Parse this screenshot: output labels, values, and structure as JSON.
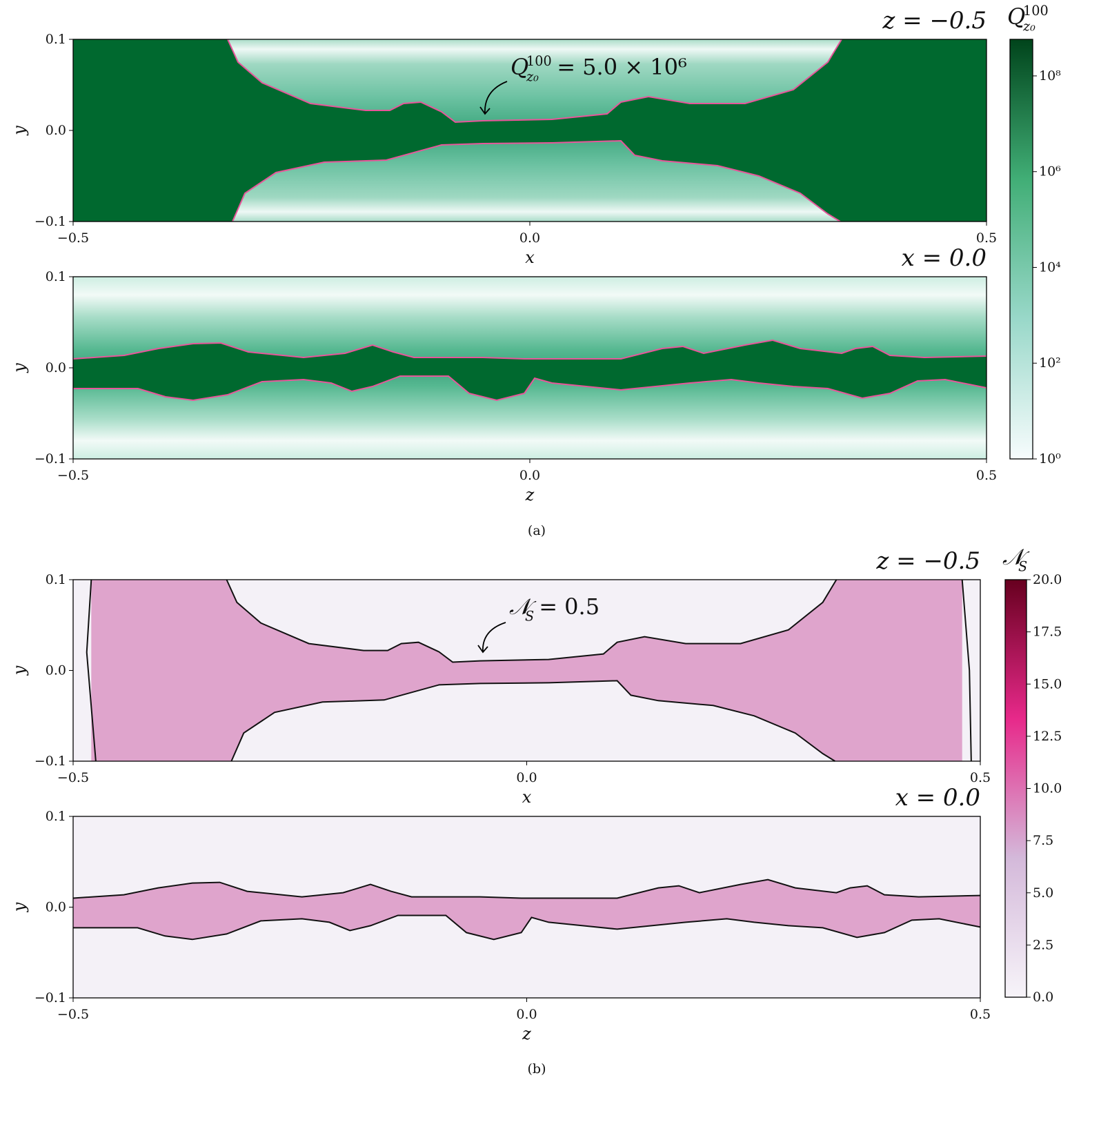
{
  "chart_data": [
    {
      "type": "heatmap",
      "title": "z = −0.5",
      "xlabel": "x",
      "ylabel": "y",
      "xlim": [
        -0.5,
        0.5
      ],
      "ylim": [
        -0.1,
        0.1
      ],
      "xticks": [
        {
          "value": -0.5,
          "label": "−0.5"
        },
        {
          "value": 0,
          "label": "0.0"
        },
        0.5
      ],
      "yticks": [
        {
          "value": -0.1,
          "label": "−0.1"
        },
        {
          "value": 0,
          "label": "0.0"
        },
        0.1
      ],
      "annotation": {
        "symbol": "Q",
        "sup": "100",
        "sub": "z₀",
        "text": "= 5.0 × 10⁶"
      },
      "colorbar": {
        "label": {
          "symbol": "Q",
          "sup": "100",
          "sub": "z₀"
        },
        "scale": "log",
        "lim": [
          1,
          580000000
        ],
        "ticks": [
          {
            "value": 1,
            "label": "10⁰"
          },
          {
            "value": 100,
            "label": "10²"
          },
          {
            "value": 10000,
            "label": "10⁴"
          },
          {
            "value": 1000000,
            "label": "10⁶"
          },
          {
            "value": 100000000,
            "label": "10⁸"
          }
        ],
        "colors": [
          "#f7fcfd",
          "#99d8c9",
          "#41ae76",
          "#00441b"
        ]
      }
    },
    {
      "type": "heatmap",
      "title": "x = 0.0",
      "xlabel": "z",
      "ylabel": "y",
      "xlim": [
        -0.5,
        0.5
      ],
      "ylim": [
        -0.1,
        0.1
      ],
      "xticks": [
        {
          "value": -0.5,
          "label": "−0.5"
        },
        {
          "value": 0,
          "label": "0.0"
        },
        0.5
      ],
      "yticks": [
        {
          "value": -0.1,
          "label": "−0.1"
        },
        {
          "value": 0,
          "label": "0.0"
        },
        0.1
      ],
      "caption": "(a)"
    },
    {
      "type": "heatmap",
      "title": "z = −0.5",
      "xlabel": "x",
      "ylabel": "y",
      "xlim": [
        -0.5,
        0.5
      ],
      "ylim": [
        -0.1,
        0.1
      ],
      "xticks": [
        {
          "value": -0.5,
          "label": "−0.5"
        },
        {
          "value": 0,
          "label": "0.0"
        },
        0.5
      ],
      "yticks": [
        {
          "value": -0.1,
          "label": "−0.1"
        },
        {
          "value": 0,
          "label": "0.0"
        },
        0.1
      ],
      "annotation": {
        "symbol": "𝒩",
        "sub": "S",
        "text": "= 0.5"
      },
      "colorbar": {
        "label": {
          "symbol": "𝒩",
          "sub": "S"
        },
        "scale": "linear",
        "lim": [
          0,
          20
        ],
        "ticks": [
          {
            "value": 0,
            "label": "0.0"
          },
          2.5,
          {
            "value": 5,
            "label": "5.0"
          },
          7.5,
          {
            "value": 10,
            "label": "10.0"
          },
          12.5,
          {
            "value": 15,
            "label": "15.0"
          },
          17.5,
          {
            "value": 20,
            "label": "20.0"
          }
        ],
        "colors": [
          "#f7f4f9",
          "#d4b9da",
          "#e7298a",
          "#67001f"
        ]
      }
    },
    {
      "type": "heatmap",
      "title": "x = 0.0",
      "xlabel": "z",
      "ylabel": "y",
      "xlim": [
        -0.5,
        0.5
      ],
      "ylim": [
        -0.1,
        0.1
      ],
      "xticks": [
        {
          "value": -0.5,
          "label": "−0.5"
        },
        {
          "value": 0,
          "label": "0.0"
        },
        0.5
      ],
      "yticks": [
        {
          "value": -0.1,
          "label": "−0.1"
        },
        {
          "value": 0,
          "label": "0.0"
        },
        0.1
      ],
      "caption": "(b)"
    }
  ]
}
